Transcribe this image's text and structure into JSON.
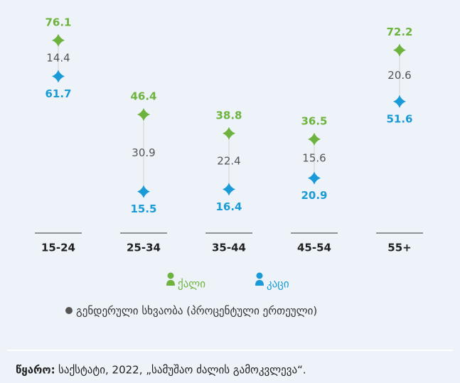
{
  "chart_data": {
    "type": "dumbbell",
    "categories": [
      "15-24",
      "25-34",
      "35-44",
      "45-54",
      "55+"
    ],
    "series": [
      {
        "name": "ქალი",
        "color": "#6fb33f",
        "values": [
          76.1,
          46.4,
          38.8,
          36.5,
          72.2
        ]
      },
      {
        "name": "კაცი",
        "color": "#1a9bd7",
        "values": [
          61.7,
          15.5,
          16.4,
          20.9,
          51.6
        ]
      }
    ],
    "gap": {
      "name": "გენდერული სხვაობა (პროცენტული ერთეული)",
      "color": "#555555",
      "values": [
        14.4,
        30.9,
        22.4,
        15.6,
        20.6
      ]
    },
    "ylim": [
      0,
      90
    ],
    "source": {
      "label": "წყარო:",
      "text": "საქსტატი, 2022, „სამუშაო ძალის გამოკვლევა“."
    }
  }
}
